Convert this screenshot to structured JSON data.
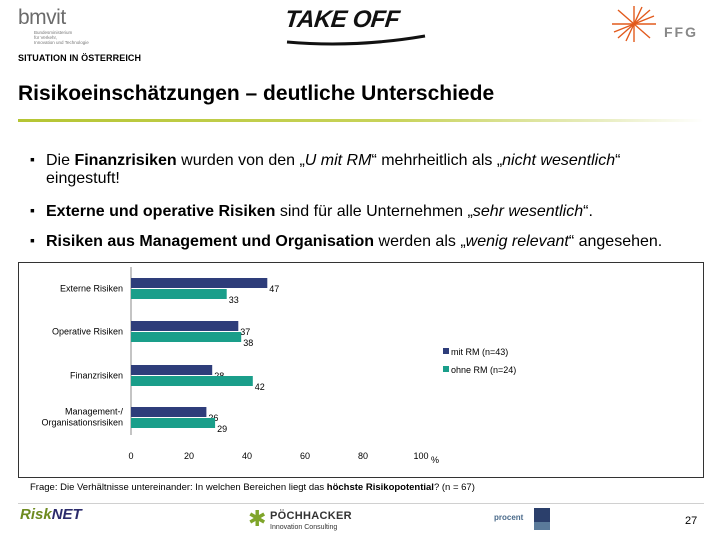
{
  "header": {
    "bmvit_logo_text": "bmvit",
    "bmvit_subtitle_lines": [
      "Bundesministerium",
      "für Verkehr,",
      "Innovation und Technologie"
    ],
    "takeoff_logo_text": "TAKE OFF",
    "ffg_logo_text": "FFG",
    "section_label": "SITUATION IN ÖSTERREICH"
  },
  "slide": {
    "title": "Risikoeinschätzungen – deutliche Unterschiede",
    "bullets": [
      {
        "parts": [
          {
            "text": "Die ",
            "bold": false,
            "italic": false
          },
          {
            "text": "Finanzrisiken",
            "bold": true,
            "italic": false
          },
          {
            "text": " wurden von den „",
            "bold": false,
            "italic": false
          },
          {
            "text": "U mit RM",
            "bold": false,
            "italic": true
          },
          {
            "text": "“ mehrheitlich als „",
            "bold": false,
            "italic": false
          },
          {
            "text": "nicht wesentlich",
            "bold": false,
            "italic": true
          },
          {
            "text": "“ eingestuft!",
            "bold": false,
            "italic": false
          }
        ]
      },
      {
        "parts": [
          {
            "text": "Externe und operative Risiken",
            "bold": true,
            "italic": false
          },
          {
            "text": " sind für alle Unternehmen  „",
            "bold": false,
            "italic": false
          },
          {
            "text": "sehr wesentlich",
            "bold": false,
            "italic": true
          },
          {
            "text": "“.",
            "bold": false,
            "italic": false
          }
        ]
      },
      {
        "parts": [
          {
            "text": "Risiken aus Management und Organisation",
            "bold": true,
            "italic": false
          },
          {
            "text": " werden als „",
            "bold": false,
            "italic": false
          },
          {
            "text": "wenig relevant",
            "bold": false,
            "italic": true
          },
          {
            "text": "“ angesehen.",
            "bold": false,
            "italic": false
          }
        ]
      }
    ],
    "footnote_prefix": "Frage: Die Verhältnisse untereinander: In welchen Bereichen liegt das ",
    "footnote_bold": "höchste Risikopotential",
    "footnote_suffix": "? (n = 67)",
    "page_number": "27"
  },
  "chart_data": {
    "type": "bar",
    "orientation": "horizontal",
    "categories": [
      "Externe Risiken",
      "Operative Risiken",
      "Finanzrisiken",
      "Management-/ Organisationsrisiken"
    ],
    "series": [
      {
        "name": "mit RM (n=43)",
        "values": [
          47,
          37,
          28,
          26
        ],
        "color": "#2e3d7a"
      },
      {
        "name": "ohne RM (n=24)",
        "values": [
          33,
          38,
          42,
          29
        ],
        "color": "#1a9e8a"
      }
    ],
    "xlim": [
      0,
      100
    ],
    "x_ticks": [
      0,
      20,
      40,
      60,
      80,
      100
    ],
    "x_unit": "%",
    "legend_position": "right"
  },
  "footer": {
    "risknet_logo_text_a": "Risk",
    "risknet_logo_text_b": "NET",
    "poechhacker_logo_text": "PÖCHHACKER",
    "poechhacker_logo_sub": "Innovation Consulting",
    "procent_logo_text": "procent"
  }
}
